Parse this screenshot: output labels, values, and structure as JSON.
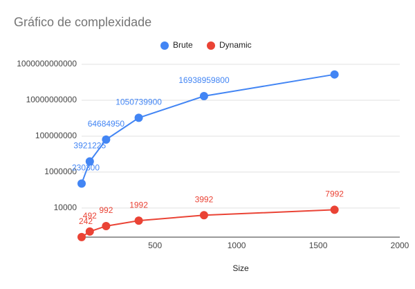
{
  "chart_data": {
    "type": "line",
    "title": "Gráfico de complexidade",
    "x_label": "Size",
    "x": [
      50,
      100,
      200,
      400,
      800,
      1600
    ],
    "series": [
      {
        "name": "Brute",
        "color": "#4285f4",
        "values": [
          230300,
          3921225,
          64684950,
          1050739900,
          16938959800,
          272000000000
        ]
      },
      {
        "name": "Dynamic",
        "color": "#ea4335",
        "values": [
          242,
          492,
          992,
          1992,
          3992,
          7992
        ]
      }
    ],
    "xlim": [
      50,
      2000
    ],
    "xticks": [
      500,
      1000,
      1500,
      2000
    ],
    "ylim": [
      240,
      1000000000000
    ],
    "yticks": [
      10000,
      1000000,
      100000000,
      10000000000,
      1000000000000
    ],
    "log_y": true,
    "grid": true,
    "legend": "top",
    "data_labels": true
  }
}
